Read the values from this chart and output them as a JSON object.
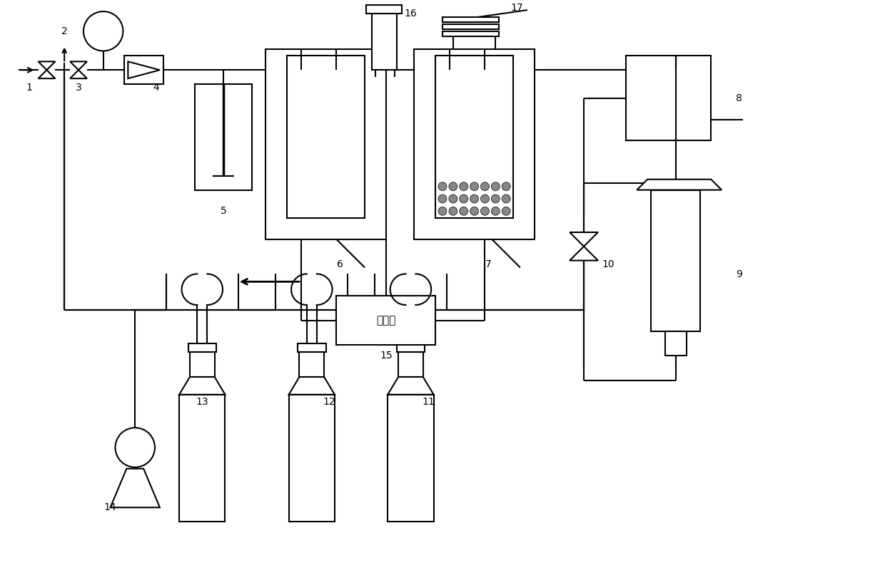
{
  "bg_color": "#ffffff",
  "line_color": "#000000",
  "lw": 1.5,
  "text_15": "计算机",
  "figsize": [
    12.4,
    8.14
  ],
  "dpi": 100
}
